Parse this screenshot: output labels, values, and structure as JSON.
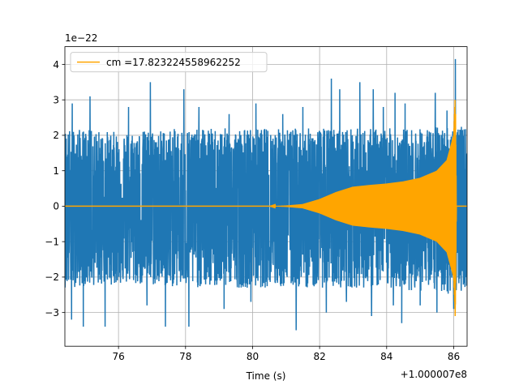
{
  "chart_data": {
    "type": "line",
    "title": "",
    "xlabel": "Time (s)",
    "ylabel": "",
    "x_offset_label": "+1.000007e8",
    "y_scale_label": "1e−22",
    "xlim": [
      74.4,
      86.4
    ],
    "ylim": [
      -3.95,
      4.5
    ],
    "x_ticks": [
      76,
      78,
      80,
      82,
      84,
      86
    ],
    "x_tick_labels": [
      "76",
      "78",
      "80",
      "82",
      "84",
      "86"
    ],
    "y_ticks": [
      -3,
      -2,
      -1,
      0,
      1,
      2,
      3,
      4
    ],
    "y_tick_labels": [
      "−3",
      "−2",
      "−1",
      "0",
      "1",
      "2",
      "3",
      "4"
    ],
    "grid": true,
    "legend_placement": "upper-left",
    "series": [
      {
        "kind": "noise",
        "color": "#1f77b4",
        "x": [
          74.4,
          86.4
        ],
        "envelope": [
          [
            74.4,
            2.2,
            -2.3
          ],
          [
            76.0,
            2.1,
            -2.2
          ],
          [
            78.0,
            2.2,
            -2.3
          ],
          [
            80.0,
            2.2,
            -2.3
          ],
          [
            82.0,
            2.2,
            -2.3
          ],
          [
            84.0,
            2.2,
            -2.3
          ],
          [
            85.0,
            2.2,
            -2.4
          ],
          [
            86.0,
            2.3,
            -2.5
          ],
          [
            86.4,
            2.2,
            -2.3
          ]
        ],
        "peaks": [
          [
            74.62,
            2.9
          ],
          [
            75.15,
            3.1
          ],
          [
            76.3,
            2.8
          ],
          [
            76.95,
            3.5
          ],
          [
            77.4,
            2.6
          ],
          [
            77.95,
            3.3
          ],
          [
            78.4,
            2.8
          ],
          [
            79.3,
            2.6
          ],
          [
            80.1,
            2.9
          ],
          [
            80.9,
            2.6
          ],
          [
            81.5,
            2.8
          ],
          [
            82.35,
            3.6
          ],
          [
            82.6,
            3.3
          ],
          [
            83.2,
            3.5
          ],
          [
            83.6,
            3.3
          ],
          [
            83.9,
            2.8
          ],
          [
            84.25,
            3.2
          ],
          [
            84.55,
            2.9
          ],
          [
            85.0,
            2.8
          ],
          [
            85.45,
            3.2
          ],
          [
            85.8,
            2.7
          ],
          [
            86.05,
            4.15
          ]
        ],
        "troughs": [
          [
            74.6,
            -3.2
          ],
          [
            74.95,
            -3.4
          ],
          [
            75.6,
            -3.4
          ],
          [
            76.85,
            -2.8
          ],
          [
            77.4,
            -3.4
          ],
          [
            78.1,
            -3.4
          ],
          [
            79.15,
            -2.9
          ],
          [
            79.95,
            -2.7
          ],
          [
            81.3,
            -3.5
          ],
          [
            82.2,
            -3.0
          ],
          [
            82.8,
            -2.7
          ],
          [
            83.55,
            -3.1
          ],
          [
            84.2,
            -2.8
          ],
          [
            84.45,
            -3.3
          ],
          [
            85.0,
            -2.8
          ],
          [
            85.5,
            -3.0
          ],
          [
            86.0,
            -2.9
          ]
        ]
      },
      {
        "kind": "chirp",
        "name": "cm =17.823224558962252",
        "color": "#ffa500",
        "envelope": [
          [
            74.4,
            0.0
          ],
          [
            80.5,
            0.0
          ],
          [
            81.0,
            0.02
          ],
          [
            81.5,
            0.06
          ],
          [
            82.0,
            0.2
          ],
          [
            82.5,
            0.4
          ],
          [
            83.0,
            0.55
          ],
          [
            83.5,
            0.6
          ],
          [
            84.0,
            0.64
          ],
          [
            84.5,
            0.7
          ],
          [
            85.0,
            0.8
          ],
          [
            85.5,
            1.0
          ],
          [
            85.8,
            1.3
          ],
          [
            86.0,
            2.0
          ],
          [
            86.05,
            3.25
          ],
          [
            86.08,
            0.0
          ],
          [
            86.4,
            0.0
          ]
        ],
        "min_spike": [
          86.05,
          -2.75
        ]
      }
    ]
  }
}
